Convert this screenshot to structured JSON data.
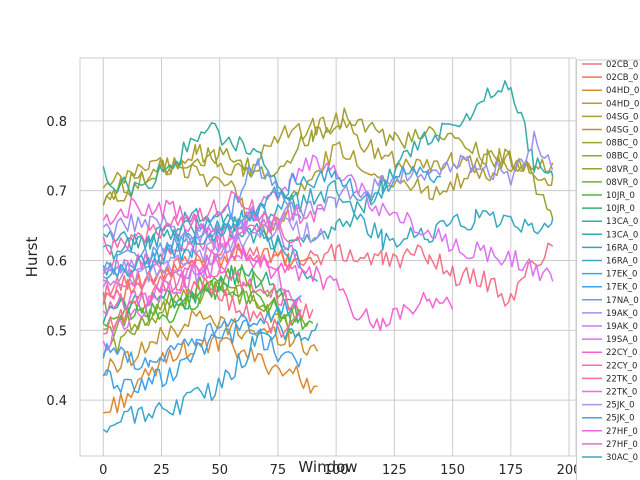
{
  "chart_data": {
    "type": "line",
    "xlabel": "Window",
    "ylabel": "Hurst",
    "xlim": [
      -10,
      203
    ],
    "ylim": [
      0.32,
      0.89
    ],
    "x_ticks": [
      0,
      25,
      50,
      75,
      100,
      125,
      150,
      175,
      200
    ],
    "y_ticks": [
      0.4,
      0.5,
      0.6,
      0.7,
      0.8
    ],
    "x_tick_labels": [
      "0",
      "25",
      "50",
      "75",
      "100",
      "125",
      "150",
      "175",
      "200"
    ],
    "y_tick_labels": [
      "0.4",
      "0.5",
      "0.6",
      "0.7",
      "0.8"
    ],
    "grid": true,
    "legend_position": "right, outside plot (clipped)",
    "series": [
      {
        "name": "02CB_0",
        "color": "#f77189",
        "points": [
          [
            0,
            0.56
          ],
          [
            20,
            0.58
          ],
          [
            40,
            0.6
          ],
          [
            60,
            0.62
          ],
          [
            80,
            0.6
          ],
          [
            100,
            0.61
          ],
          [
            120,
            0.6
          ],
          [
            140,
            0.61
          ],
          [
            150,
            0.58
          ],
          [
            165,
            0.57
          ],
          [
            175,
            0.54
          ],
          [
            185,
            0.6
          ],
          [
            193,
            0.62
          ]
        ]
      },
      {
        "name": "02CB_0",
        "color": "#f7754f",
        "points": [
          [
            0,
            0.55
          ],
          [
            20,
            0.57
          ],
          [
            40,
            0.6
          ],
          [
            60,
            0.61
          ],
          [
            80,
            0.6
          ],
          [
            92,
            0.6
          ]
        ]
      },
      {
        "name": "04HD_0",
        "color": "#dc8932",
        "points": [
          [
            0,
            0.38
          ],
          [
            15,
            0.42
          ],
          [
            30,
            0.47
          ],
          [
            50,
            0.48
          ],
          [
            65,
            0.46
          ],
          [
            80,
            0.44
          ],
          [
            92,
            0.42
          ]
        ]
      },
      {
        "name": "04HD_0",
        "color": "#c39532",
        "points": [
          [
            0,
            0.44
          ],
          [
            20,
            0.48
          ],
          [
            40,
            0.52
          ],
          [
            60,
            0.5
          ],
          [
            80,
            0.49
          ],
          [
            92,
            0.47
          ]
        ]
      },
      {
        "name": "04SG_0",
        "color": "#ae9d31",
        "points": [
          [
            0,
            0.68
          ],
          [
            20,
            0.72
          ],
          [
            40,
            0.76
          ],
          [
            60,
            0.72
          ],
          [
            75,
            0.78
          ],
          [
            90,
            0.79
          ],
          [
            100,
            0.8
          ],
          [
            115,
            0.76
          ],
          [
            130,
            0.74
          ],
          [
            150,
            0.74
          ],
          [
            170,
            0.75
          ],
          [
            185,
            0.73
          ],
          [
            193,
            0.72
          ]
        ]
      },
      {
        "name": "04SG_0",
        "color": "#ae9d31",
        "points": [
          [
            0,
            0.7
          ],
          [
            20,
            0.74
          ],
          [
            40,
            0.73
          ],
          [
            55,
            0.7
          ],
          [
            70,
            0.64
          ],
          [
            85,
            0.7
          ],
          [
            100,
            0.76
          ],
          [
            120,
            0.72
          ],
          [
            140,
            0.7
          ],
          [
            160,
            0.72
          ],
          [
            175,
            0.73
          ],
          [
            193,
            0.74
          ]
        ]
      },
      {
        "name": "08BC_0",
        "color": "#9ba231",
        "points": [
          [
            0,
            0.69
          ],
          [
            15,
            0.72
          ],
          [
            30,
            0.74
          ],
          [
            50,
            0.75
          ],
          [
            70,
            0.72
          ],
          [
            90,
            0.78
          ],
          [
            105,
            0.81
          ],
          [
            125,
            0.77
          ],
          [
            145,
            0.78
          ],
          [
            165,
            0.75
          ],
          [
            180,
            0.74
          ],
          [
            193,
            0.66
          ]
        ]
      },
      {
        "name": "08BC_0",
        "color": "#97a431",
        "points": [
          [
            0,
            0.47
          ],
          [
            15,
            0.5
          ],
          [
            30,
            0.55
          ],
          [
            45,
            0.56
          ],
          [
            60,
            0.55
          ],
          [
            75,
            0.51
          ],
          [
            85,
            0.52
          ]
        ]
      },
      {
        "name": "08VR_0",
        "color": "#8ca931",
        "points": [
          [
            0,
            0.5
          ],
          [
            20,
            0.52
          ],
          [
            40,
            0.55
          ],
          [
            55,
            0.57
          ],
          [
            70,
            0.54
          ],
          [
            82,
            0.5
          ]
        ]
      },
      {
        "name": "08VR_0",
        "color": "#6fb231",
        "points": [
          [
            0,
            0.54
          ],
          [
            20,
            0.53
          ],
          [
            40,
            0.56
          ],
          [
            60,
            0.58
          ],
          [
            75,
            0.55
          ],
          [
            88,
            0.51
          ]
        ]
      },
      {
        "name": "10JR_0",
        "color": "#4fb735",
        "points": [
          [
            0,
            0.5
          ],
          [
            15,
            0.53
          ],
          [
            30,
            0.52
          ],
          [
            45,
            0.56
          ],
          [
            60,
            0.55
          ],
          [
            75,
            0.53
          ],
          [
            90,
            0.51
          ]
        ]
      },
      {
        "name": "10JR_0",
        "color": "#33b07a",
        "points": [
          [
            0,
            0.52
          ],
          [
            20,
            0.55
          ],
          [
            40,
            0.54
          ],
          [
            55,
            0.58
          ],
          [
            70,
            0.57
          ],
          [
            85,
            0.52
          ]
        ]
      },
      {
        "name": "13CA_0",
        "color": "#35ad9c",
        "points": [
          [
            0,
            0.72
          ],
          [
            15,
            0.7
          ],
          [
            30,
            0.74
          ],
          [
            45,
            0.79
          ],
          [
            60,
            0.76
          ],
          [
            75,
            0.72
          ],
          [
            85,
            0.67
          ]
        ]
      },
      {
        "name": "13CA_0",
        "color": "#36abae",
        "points": [
          [
            0,
            0.61
          ],
          [
            20,
            0.63
          ],
          [
            40,
            0.65
          ],
          [
            60,
            0.64
          ],
          [
            80,
            0.62
          ],
          [
            100,
            0.64
          ],
          [
            120,
            0.71
          ],
          [
            135,
            0.77
          ],
          [
            150,
            0.79
          ],
          [
            165,
            0.84
          ],
          [
            175,
            0.85
          ],
          [
            185,
            0.74
          ],
          [
            193,
            0.72
          ]
        ]
      },
      {
        "name": "16RA_0",
        "color": "#37a7bc",
        "points": [
          [
            0,
            0.64
          ],
          [
            20,
            0.62
          ],
          [
            40,
            0.67
          ],
          [
            60,
            0.65
          ],
          [
            80,
            0.61
          ],
          [
            92,
            0.57
          ]
        ]
      },
      {
        "name": "16RA_0",
        "color": "#38a9c5",
        "points": [
          [
            0,
            0.58
          ],
          [
            20,
            0.6
          ],
          [
            40,
            0.64
          ],
          [
            60,
            0.66
          ],
          [
            80,
            0.68
          ],
          [
            100,
            0.7
          ],
          [
            120,
            0.63
          ],
          [
            140,
            0.64
          ],
          [
            160,
            0.66
          ],
          [
            175,
            0.65
          ],
          [
            185,
            0.64
          ],
          [
            193,
            0.66
          ]
        ]
      },
      {
        "name": "17EK_0",
        "color": "#38a6d0",
        "points": [
          [
            0,
            0.36
          ],
          [
            15,
            0.38
          ],
          [
            30,
            0.39
          ],
          [
            45,
            0.41
          ],
          [
            55,
            0.44
          ],
          [
            65,
            0.48
          ],
          [
            75,
            0.5
          ],
          [
            85,
            0.49
          ],
          [
            92,
            0.51
          ]
        ]
      },
      {
        "name": "17EK_0",
        "color": "#3ba3ec",
        "points": [
          [
            0,
            0.43
          ],
          [
            15,
            0.42
          ],
          [
            30,
            0.44
          ],
          [
            45,
            0.48
          ],
          [
            60,
            0.5
          ],
          [
            75,
            0.52
          ],
          [
            85,
            0.55
          ]
        ]
      },
      {
        "name": "17NA_0",
        "color": "#6e9af4",
        "points": [
          [
            0,
            0.59
          ],
          [
            20,
            0.61
          ],
          [
            40,
            0.64
          ],
          [
            55,
            0.67
          ],
          [
            65,
            0.74
          ],
          [
            75,
            0.7
          ],
          [
            85,
            0.66
          ]
        ]
      },
      {
        "name": "19AK_0",
        "color": "#9a90f4",
        "points": [
          [
            0,
            0.64
          ],
          [
            20,
            0.66
          ],
          [
            40,
            0.63
          ],
          [
            60,
            0.65
          ],
          [
            80,
            0.67
          ],
          [
            100,
            0.69
          ],
          [
            120,
            0.71
          ],
          [
            140,
            0.73
          ],
          [
            160,
            0.74
          ],
          [
            175,
            0.72
          ],
          [
            185,
            0.77
          ],
          [
            193,
            0.73
          ]
        ]
      },
      {
        "name": "19AK_0",
        "color": "#bb83f4",
        "points": [
          [
            0,
            0.56
          ],
          [
            20,
            0.59
          ],
          [
            40,
            0.58
          ],
          [
            55,
            0.62
          ],
          [
            65,
            0.67
          ],
          [
            75,
            0.64
          ],
          [
            85,
            0.59
          ]
        ]
      },
      {
        "name": "19SA_0",
        "color": "#df71f4",
        "points": [
          [
            0,
            0.48
          ],
          [
            15,
            0.53
          ],
          [
            30,
            0.56
          ],
          [
            45,
            0.6
          ],
          [
            60,
            0.65
          ],
          [
            75,
            0.7
          ],
          [
            90,
            0.74
          ],
          [
            105,
            0.72
          ],
          [
            120,
            0.67
          ],
          [
            135,
            0.65
          ],
          [
            150,
            0.62
          ],
          [
            165,
            0.61
          ],
          [
            180,
            0.6
          ],
          [
            193,
            0.57
          ]
        ]
      },
      {
        "name": "22CY_0",
        "color": "#f564d4",
        "points": [
          [
            0,
            0.66
          ],
          [
            15,
            0.68
          ],
          [
            30,
            0.67
          ],
          [
            45,
            0.64
          ],
          [
            60,
            0.61
          ],
          [
            75,
            0.59
          ],
          [
            90,
            0.58
          ],
          [
            100,
            0.56
          ],
          [
            110,
            0.52
          ],
          [
            120,
            0.51
          ],
          [
            130,
            0.53
          ],
          [
            140,
            0.55
          ],
          [
            150,
            0.53
          ]
        ]
      },
      {
        "name": "22CY_0",
        "color": "#f66bad",
        "points": [
          [
            0,
            0.55
          ],
          [
            20,
            0.57
          ],
          [
            40,
            0.59
          ],
          [
            60,
            0.57
          ],
          [
            75,
            0.55
          ],
          [
            85,
            0.53
          ]
        ]
      },
      {
        "name": "22TK_0",
        "color": "#f7708f",
        "points": [
          [
            0,
            0.5
          ],
          [
            15,
            0.54
          ],
          [
            30,
            0.57
          ],
          [
            45,
            0.56
          ],
          [
            60,
            0.53
          ],
          [
            75,
            0.5
          ],
          [
            90,
            0.53
          ]
        ]
      },
      {
        "name": "22TK_0",
        "color": "#f46ec8",
        "points": [
          [
            0,
            0.58
          ],
          [
            20,
            0.6
          ],
          [
            40,
            0.62
          ],
          [
            60,
            0.64
          ],
          [
            80,
            0.66
          ],
          [
            95,
            0.67
          ]
        ]
      },
      {
        "name": "25JK_0",
        "color": "#a795f4",
        "points": [
          [
            0,
            0.6
          ],
          [
            20,
            0.58
          ],
          [
            40,
            0.61
          ],
          [
            60,
            0.63
          ],
          [
            80,
            0.65
          ],
          [
            95,
            0.63
          ]
        ]
      },
      {
        "name": "25JK_0",
        "color": "#4aa0e8",
        "points": [
          [
            0,
            0.47
          ],
          [
            20,
            0.45
          ],
          [
            40,
            0.49
          ],
          [
            60,
            0.51
          ],
          [
            75,
            0.47
          ],
          [
            85,
            0.46
          ]
        ]
      },
      {
        "name": "27HF_0",
        "color": "#ee66e0",
        "points": [
          [
            0,
            0.53
          ],
          [
            20,
            0.55
          ],
          [
            40,
            0.58
          ],
          [
            60,
            0.61
          ],
          [
            75,
            0.58
          ],
          [
            85,
            0.54
          ]
        ]
      },
      {
        "name": "27HF_0",
        "color": "#f46bb8",
        "points": [
          [
            0,
            0.62
          ],
          [
            20,
            0.64
          ],
          [
            40,
            0.66
          ],
          [
            55,
            0.69
          ],
          [
            70,
            0.66
          ],
          [
            85,
            0.62
          ]
        ]
      },
      {
        "name": "30AC_0",
        "color": "#3aa6d6",
        "points": [
          [
            0,
            0.57
          ],
          [
            20,
            0.6
          ],
          [
            40,
            0.62
          ],
          [
            60,
            0.66
          ],
          [
            80,
            0.71
          ],
          [
            100,
            0.72
          ],
          [
            115,
            0.69
          ],
          [
            130,
            0.73
          ],
          [
            145,
            0.72
          ]
        ]
      }
    ]
  }
}
